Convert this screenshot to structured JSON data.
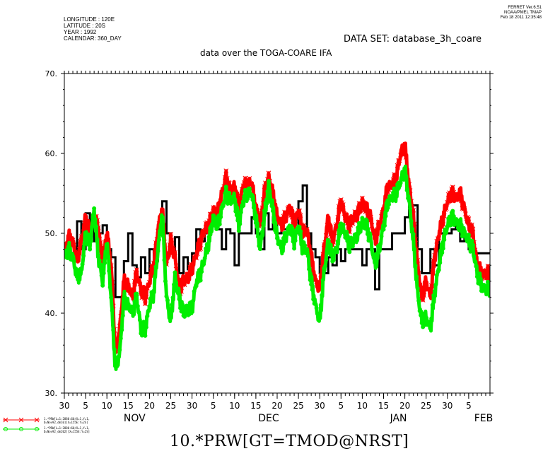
{
  "header": {
    "meta_lines": [
      "LONGITUDE : 120E",
      "LATITUDE : 20S",
      "YEAR : 1992",
      "CALENDAR: 360_DAY"
    ],
    "ferret_lines": [
      "FERRET  Ver.6.51",
      "NOAA/PMEL TMAP",
      "Feb 18 2011 12:35:48"
    ],
    "dataset": "DATA SET: database_3h_coare",
    "subtitle": "data over the TOGA-COARE IFA"
  },
  "bottom_title": "10.*PRW[GT=TMOD@NRST]",
  "legend": [
    {
      "line1": "1.*PRW[L=1:2880:60/X=1,Y=1,",
      "line2": "D=Nov92_dm10][X=155E:Y=2S]",
      "color": "#ff0000",
      "marker": "x"
    },
    {
      "line1": "1.*PRW[L=1:2880:60/X=1,Y=1,",
      "line2": "D=Nov92_dm202][X=155E:Y=2S]",
      "color": "#00ee00",
      "marker": "o"
    }
  ],
  "chart_data": {
    "type": "line",
    "title": "data over the TOGA-COARE IFA",
    "ylim": [
      30,
      70
    ],
    "yticks": [
      30,
      40,
      50,
      60,
      70
    ],
    "ytick_labels": [
      "30.",
      "40.",
      "50.",
      "60.",
      "70."
    ],
    "xlim": [
      0,
      100
    ],
    "xticks": [
      {
        "x": 0,
        "label": "30"
      },
      {
        "x": 5,
        "label": "5"
      },
      {
        "x": 10,
        "label": "10"
      },
      {
        "x": 15,
        "label": "15"
      },
      {
        "x": 20,
        "label": "20"
      },
      {
        "x": 25,
        "label": "25"
      },
      {
        "x": 30,
        "label": "30"
      },
      {
        "x": 35,
        "label": "5"
      },
      {
        "x": 40,
        "label": "10"
      },
      {
        "x": 45,
        "label": "15"
      },
      {
        "x": 50,
        "label": "20"
      },
      {
        "x": 55,
        "label": "25"
      },
      {
        "x": 60,
        "label": "30"
      },
      {
        "x": 65,
        "label": "5"
      },
      {
        "x": 70,
        "label": "10"
      },
      {
        "x": 75,
        "label": "15"
      },
      {
        "x": 80,
        "label": "20"
      },
      {
        "x": 85,
        "label": "25"
      },
      {
        "x": 90,
        "label": "30"
      },
      {
        "x": 95,
        "label": "5"
      }
    ],
    "months": [
      {
        "x": 16.5,
        "label": "NOV"
      },
      {
        "x": 48,
        "label": "DEC"
      },
      {
        "x": 78.5,
        "label": "JAN"
      },
      {
        "x": 98.5,
        "label": "FEB"
      }
    ],
    "series": [
      {
        "color": "#000000",
        "style": "step",
        "x": [
          0,
          1,
          2,
          3,
          4,
          5,
          6,
          7,
          8,
          9,
          10,
          11,
          12,
          13,
          14,
          15,
          16,
          17,
          18,
          19,
          20,
          21,
          22,
          23,
          24,
          25,
          26,
          27,
          28,
          29,
          30,
          31,
          32,
          33,
          34,
          35,
          36,
          37,
          38,
          39,
          40,
          41,
          42,
          43,
          44,
          45,
          46,
          47,
          48,
          49,
          50,
          51,
          52,
          53,
          54,
          55,
          56,
          57,
          58,
          59,
          60,
          61,
          62,
          63,
          64,
          65,
          66,
          67,
          68,
          69,
          70,
          71,
          72,
          73,
          74,
          75,
          76,
          77,
          78,
          79,
          80,
          81,
          82,
          83,
          84,
          85,
          86,
          87,
          88,
          89,
          90,
          91,
          92,
          93,
          94,
          95,
          96,
          97,
          98,
          99,
          100
        ],
        "y": [
          47.5,
          47.0,
          47.5,
          51.5,
          48.0,
          52.5,
          51.0,
          49.0,
          50.0,
          51.0,
          48.0,
          47.0,
          42.0,
          42.0,
          46.5,
          50.0,
          46.0,
          44.5,
          47.0,
          45.0,
          48.0,
          46.5,
          51.0,
          54.0,
          50.0,
          47.5,
          49.5,
          45.0,
          47.0,
          45.5,
          47.5,
          50.5,
          49.0,
          50.0,
          51.0,
          52.0,
          50.5,
          48.0,
          50.5,
          50.0,
          46.0,
          50.0,
          50.0,
          50.0,
          52.0,
          50.0,
          48.0,
          52.5,
          50.5,
          52.0,
          50.0,
          50.5,
          50.5,
          51.0,
          50.0,
          54.0,
          56.0,
          50.0,
          48.0,
          47.0,
          45.0,
          45.0,
          47.0,
          46.0,
          48.0,
          46.5,
          48.0,
          48.0,
          48.0,
          48.0,
          46.0,
          48.0,
          48.0,
          43.0,
          48.0,
          48.0,
          48.0,
          50.0,
          50.0,
          50.0,
          52.0,
          53.5,
          53.5,
          48.0,
          45.0,
          45.0,
          48.0,
          46.0,
          50.0,
          50.0,
          50.0,
          50.5,
          51.0,
          49.0,
          49.5,
          48.0,
          47.5,
          47.5,
          47.5,
          47.5,
          47.5
        ]
      },
      {
        "color": "#ff0000",
        "style": "marker-x",
        "x": [
          0,
          1,
          2,
          3,
          4,
          5,
          6,
          7,
          8,
          9,
          10,
          11,
          12,
          13,
          14,
          15,
          16,
          17,
          18,
          19,
          20,
          21,
          22,
          23,
          24,
          25,
          26,
          27,
          28,
          29,
          30,
          31,
          32,
          33,
          34,
          35,
          36,
          37,
          38,
          39,
          40,
          41,
          42,
          43,
          44,
          45,
          46,
          47,
          48,
          49,
          50,
          51,
          52,
          53,
          54,
          55,
          56,
          57,
          58,
          59,
          60,
          61,
          62,
          63,
          64,
          65,
          66,
          67,
          68,
          69,
          70,
          71,
          72,
          73,
          74,
          75,
          76,
          77,
          78,
          79,
          80,
          81,
          82,
          83,
          84,
          85,
          86,
          87,
          88,
          89,
          90,
          91,
          92,
          93,
          94,
          95,
          96,
          97,
          98,
          99,
          100
        ],
        "y": [
          47.5,
          49.5,
          49.0,
          46.5,
          49.0,
          52.0,
          50.0,
          52.0,
          50.5,
          46.0,
          50.0,
          46.0,
          35.0,
          38.0,
          44.0,
          43.5,
          42.0,
          45.0,
          43.0,
          42.0,
          44.0,
          46.0,
          50.5,
          53.0,
          46.0,
          49.0,
          47.0,
          43.0,
          44.0,
          44.5,
          45.5,
          47.5,
          49.0,
          50.5,
          51.0,
          53.0,
          52.5,
          55.0,
          57.0,
          55.0,
          56.0,
          53.0,
          56.0,
          56.0,
          56.5,
          53.0,
          51.0,
          55.0,
          57.0,
          55.0,
          52.0,
          51.0,
          52.0,
          53.5,
          51.0,
          53.0,
          50.0,
          50.5,
          47.0,
          44.0,
          43.0,
          48.0,
          52.0,
          49.0,
          51.0,
          54.0,
          52.0,
          51.0,
          52.0,
          52.5,
          54.0,
          53.0,
          52.0,
          49.0,
          51.0,
          53.0,
          56.0,
          56.0,
          57.0,
          60.0,
          61.0,
          56.0,
          52.0,
          46.0,
          42.0,
          44.0,
          42.0,
          47.0,
          50.0,
          52.0,
          54.0,
          55.0,
          54.5,
          55.0,
          53.0,
          51.0,
          50.0,
          46.0,
          45.0,
          45.0,
          45.0
        ]
      },
      {
        "color": "#00ee00",
        "style": "marker-o",
        "x": [
          0,
          1,
          2,
          3,
          4,
          5,
          6,
          7,
          8,
          9,
          10,
          11,
          12,
          13,
          14,
          15,
          16,
          17,
          18,
          19,
          20,
          21,
          22,
          23,
          24,
          25,
          26,
          27,
          28,
          29,
          30,
          31,
          32,
          33,
          34,
          35,
          36,
          37,
          38,
          39,
          40,
          41,
          42,
          43,
          44,
          45,
          46,
          47,
          48,
          49,
          50,
          51,
          52,
          53,
          54,
          55,
          56,
          57,
          58,
          59,
          60,
          61,
          62,
          63,
          64,
          65,
          66,
          67,
          68,
          69,
          70,
          71,
          72,
          73,
          74,
          75,
          76,
          77,
          78,
          79,
          80,
          81,
          82,
          83,
          84,
          85,
          86,
          87,
          88,
          89,
          90,
          91,
          92,
          93,
          94,
          95,
          96,
          97,
          98,
          99,
          100
        ],
        "y": [
          47.0,
          48.0,
          47.0,
          44.5,
          45.0,
          50.0,
          48.5,
          53.0,
          47.0,
          44.0,
          49.0,
          42.0,
          33.0,
          35.0,
          42.0,
          41.0,
          40.0,
          42.0,
          38.0,
          38.0,
          41.0,
          42.5,
          48.0,
          52.5,
          42.0,
          39.0,
          44.5,
          42.0,
          40.0,
          40.5,
          40.5,
          44.0,
          45.0,
          47.0,
          49.0,
          52.0,
          51.0,
          53.0,
          55.0,
          54.0,
          54.5,
          51.0,
          54.0,
          55.0,
          55.0,
          52.0,
          48.0,
          52.0,
          56.0,
          53.0,
          49.5,
          48.0,
          49.5,
          51.0,
          49.0,
          51.0,
          48.0,
          48.0,
          44.0,
          41.0,
          39.0,
          45.0,
          49.0,
          47.0,
          48.0,
          51.0,
          50.0,
          48.5,
          49.0,
          50.0,
          51.5,
          51.0,
          49.0,
          46.0,
          48.0,
          51.0,
          54.0,
          54.5,
          55.0,
          56.5,
          58.0,
          54.0,
          49.0,
          42.5,
          39.0,
          39.5,
          38.0,
          42.5,
          46.0,
          49.0,
          51.0,
          52.0,
          51.5,
          51.0,
          50.0,
          49.0,
          48.0,
          45.0,
          43.5,
          43.0,
          43.0
        ]
      }
    ]
  }
}
